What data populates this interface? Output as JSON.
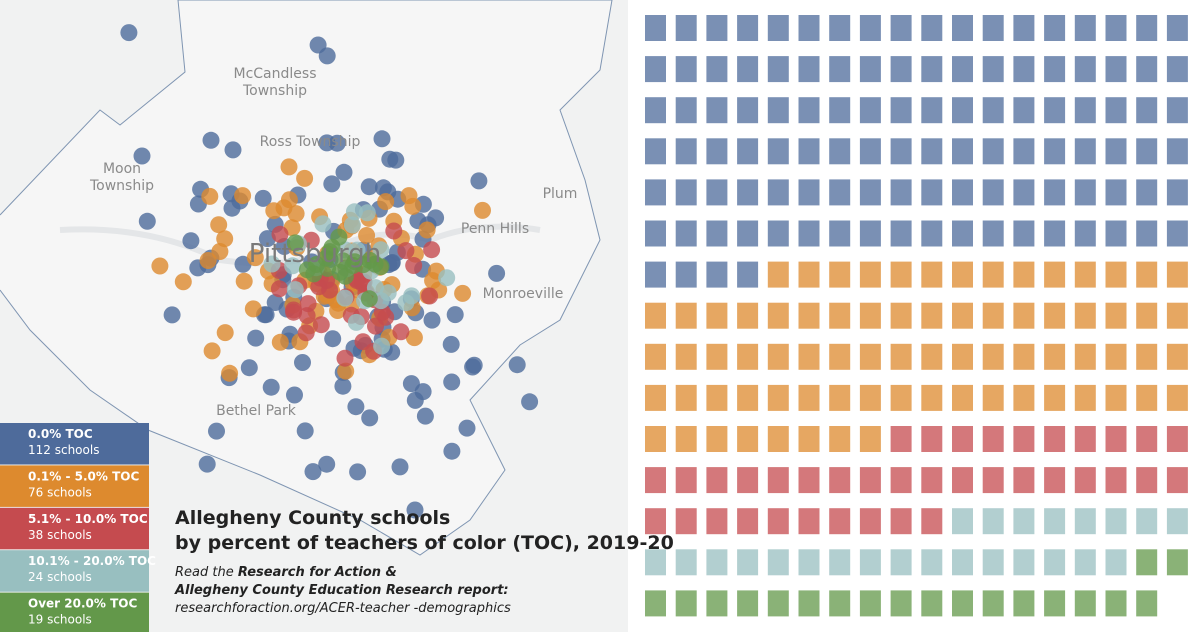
{
  "map": {
    "places": [
      {
        "lines": [
          "McCandless",
          "Township"
        ]
      },
      {
        "lines": [
          "Ross Township"
        ]
      },
      {
        "lines": [
          "Moon",
          "Township"
        ]
      },
      {
        "lines": [
          "Pittsburgh"
        ]
      },
      {
        "lines": [
          "Penn Hills"
        ]
      },
      {
        "lines": [
          "Plum"
        ]
      },
      {
        "lines": [
          "Monroeville"
        ]
      },
      {
        "lines": [
          "Bethel Park"
        ]
      }
    ]
  },
  "chart_data": {
    "type": "waffle",
    "title": [
      "Allegheny County schools",
      "by percent of teachers of color (TOC), 2019-20"
    ],
    "note": [
      "Read the ",
      "Research for Action &",
      "Allegheny County Education Research report:",
      "researchforaction.org/ACER-teacher -demographics"
    ],
    "categories": [
      "0.0% TOC",
      "0.1% - 5.0% TOC",
      "5.1% - 10.0% TOC",
      "10.1% - 20.0% TOC",
      "Over 20.0% TOC"
    ],
    "values": [
      112,
      76,
      38,
      24,
      19
    ],
    "value_labels": [
      "112 schools",
      "76 schools",
      "38 schools",
      "24 schools",
      "19 schools"
    ],
    "colors": [
      "#4e6b9b",
      "#dd8a2e",
      "#c54b4f",
      "#98bfc0",
      "#63984a"
    ]
  }
}
